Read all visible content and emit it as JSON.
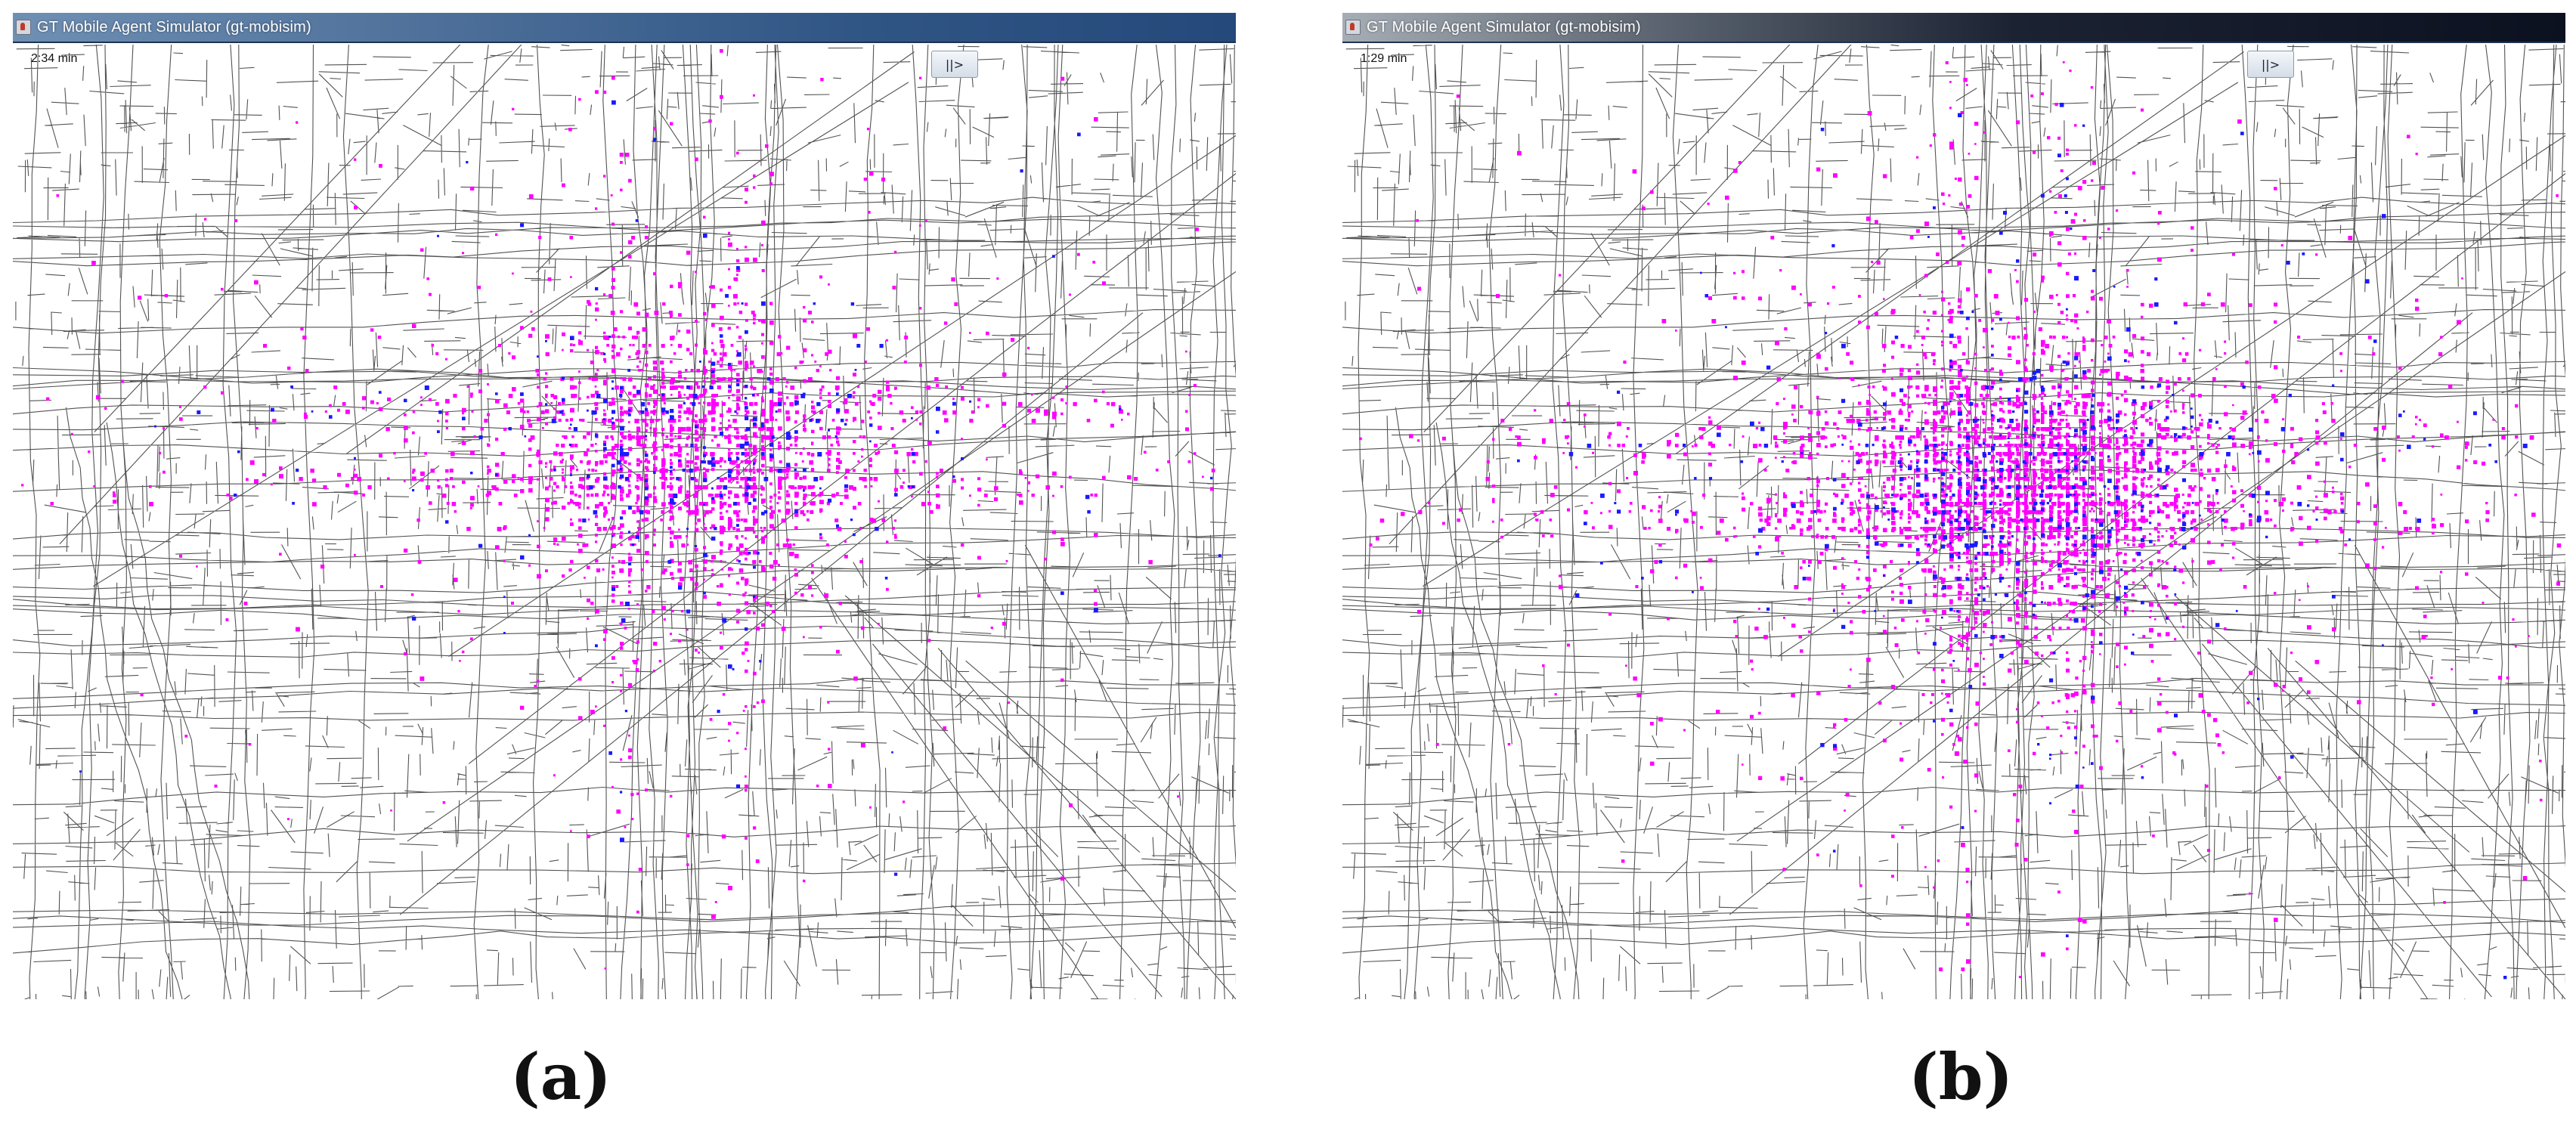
{
  "colors": {
    "road": "#1a1a1a",
    "vehicle_a": "#ff00ff",
    "vehicle_b": "#1a1aff",
    "background": "#ffffff"
  },
  "panels": [
    {
      "window_title": "GT Mobile Agent Simulator (gt-mobisim)",
      "elapsed_time": "2:34 min",
      "play_pause_label": "||>",
      "caption": "(a)",
      "icon": "java-app-icon",
      "density": "moderate"
    },
    {
      "window_title": "GT Mobile Agent Simulator (gt-mobisim)",
      "elapsed_time": "1:29 min",
      "play_pause_label": "||>",
      "caption": "(b)",
      "icon": "java-app-icon",
      "density": "high"
    }
  ]
}
